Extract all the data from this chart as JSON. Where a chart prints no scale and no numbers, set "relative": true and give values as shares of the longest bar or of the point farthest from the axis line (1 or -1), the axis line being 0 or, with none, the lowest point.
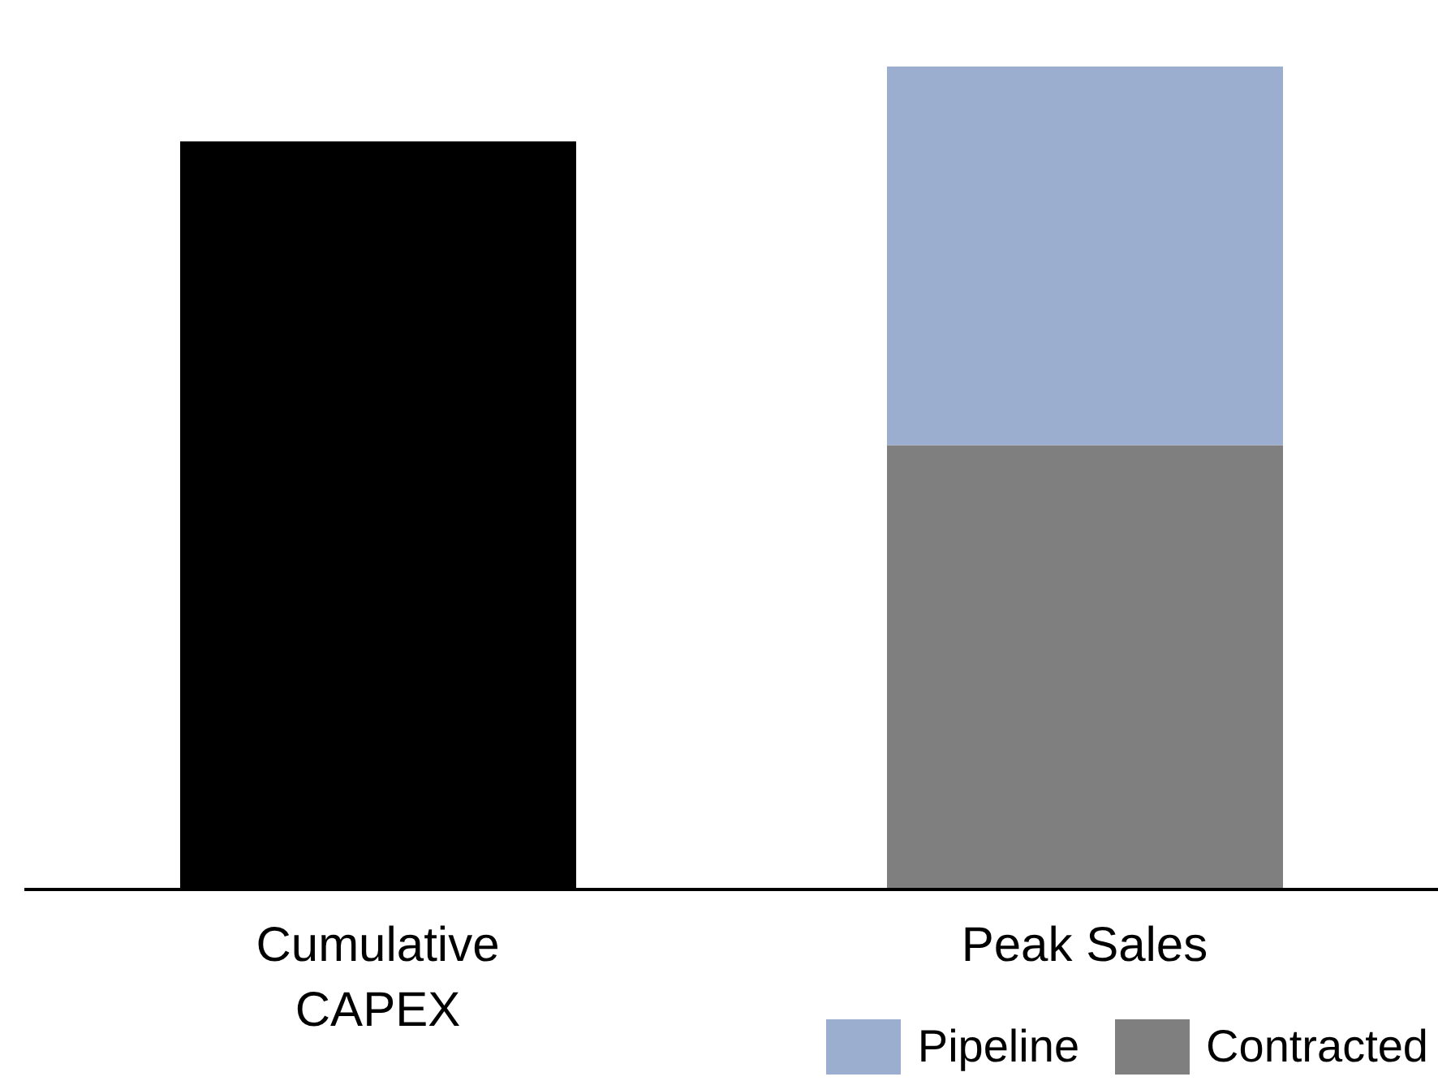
{
  "chart_data": {
    "type": "bar",
    "relative": true,
    "stacked": true,
    "categories": [
      "Cumulative CAPEX",
      "Peak Sales"
    ],
    "series": [
      {
        "color": "#000000",
        "values": [
          0.909,
          null
        ]
      },
      {
        "name": "Contracted",
        "color": "#7f7f7f",
        "values": [
          null,
          0.54
        ]
      },
      {
        "name": "Pipeline",
        "color": "#9baecf",
        "values": [
          null,
          0.46
        ]
      }
    ],
    "legend": "bottom right"
  }
}
